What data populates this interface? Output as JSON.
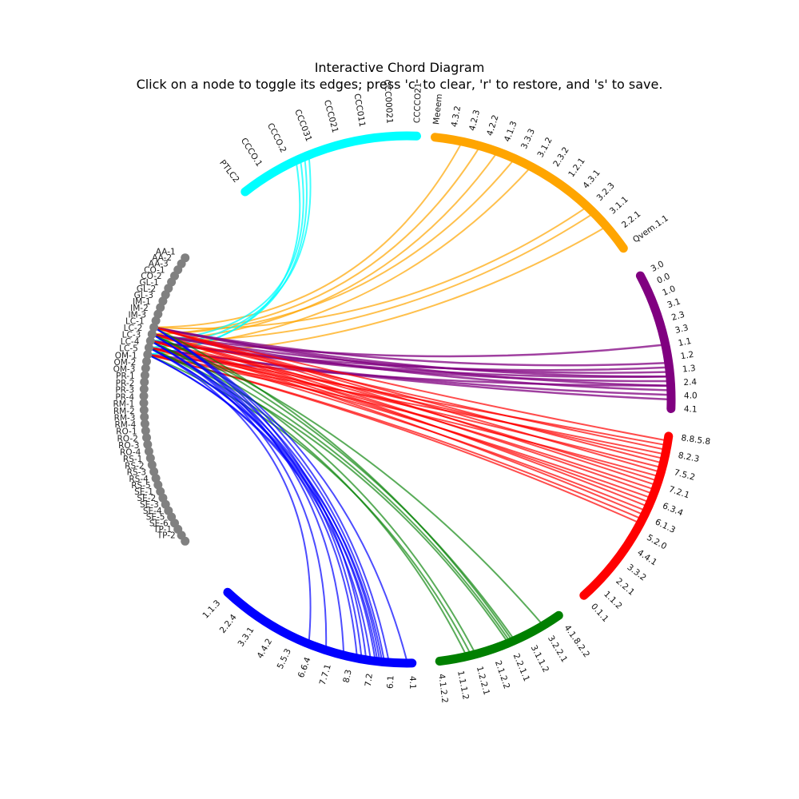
{
  "title": "Interactive Chord Diagram",
  "subtitle": "Click on a node to toggle its edges; press 'c' to clear, 'r' to restore, and 's' to save.",
  "node_color": "#808080",
  "left_nodes": [
    "AA-1",
    "AA-2",
    "AA-3",
    "CO-1",
    "CO-2",
    "GL-1",
    "GL-2",
    "GL-3",
    "IM-1",
    "IM-2",
    "IM-3",
    "LC-1",
    "LC-2",
    "LC-3",
    "LC-4",
    "LC-5",
    "OM-1",
    "OM-2",
    "OM-3",
    "PR-1",
    "PR-2",
    "PR-3",
    "PR-4",
    "RM-1",
    "RM-2",
    "RM-3",
    "RM-4",
    "RO-1",
    "RO-2",
    "RO-3",
    "RO-4",
    "RS-1",
    "RS-2",
    "RS-3",
    "RS-4",
    "RS-5",
    "SE-1",
    "SE-2",
    "SE-3",
    "SE-4",
    "SE-5",
    "SE-6",
    "TP-1",
    "TP-2"
  ],
  "groups": [
    {
      "color": "#00ffff",
      "labels": [
        "PTLC2",
        "CCCO.1",
        "CCCO.2",
        "CCC031",
        "CCC021",
        "CCC011",
        "CCC00021",
        "CCCCO21"
      ]
    },
    {
      "color": "#ffa500",
      "labels": [
        "Meeem",
        "4.3.2",
        "4.2.3",
        "4.2.2",
        "4.1.3",
        "3.3.3",
        "3.1.2",
        "2.3.2",
        "1.2.1",
        "4.3.1",
        "3.2.3",
        "3.1.1",
        "2.2.1",
        "Qvem.1.1"
      ]
    },
    {
      "color": "#800080",
      "labels": [
        "3.0",
        "0.0",
        "1.0",
        "3.1",
        "2.3",
        "3.3",
        "1.1",
        "1.2",
        "1.3",
        "2.4",
        "4.0",
        "4.1"
      ]
    },
    {
      "color": "#ff0000",
      "labels": [
        "8.8.5.8",
        "8.2.3",
        "7.5.2",
        "7.2.1",
        "6.3.4",
        "6.1.3",
        "5.2.0",
        "4.4.1",
        "3.3.2",
        "2.2.1",
        "1.1.2",
        "0.1.1"
      ]
    },
    {
      "color": "#008000",
      "labels": [
        "4.1.8.2.2",
        "3.2.2.1",
        "3.1.1.2",
        "2.2.1.1",
        "2.1.2.2",
        "1.2.2.1",
        "1.1.1.2",
        "4.1.2.2"
      ]
    },
    {
      "color": "#0000ff",
      "labels": [
        "4.1",
        "6.1",
        "7.2",
        "8.3",
        "7.7.1",
        "6.6.4",
        "5.5.3",
        "4.4.2",
        "3.3.1",
        "2.2.4",
        "1.1.3"
      ]
    }
  ],
  "chord_colors": {
    "cyan": "#00ffff",
    "orange": "#ffa500",
    "purple": "#800080",
    "red": "#ff0000",
    "green": "#008000",
    "blue": "#0000ff"
  }
}
